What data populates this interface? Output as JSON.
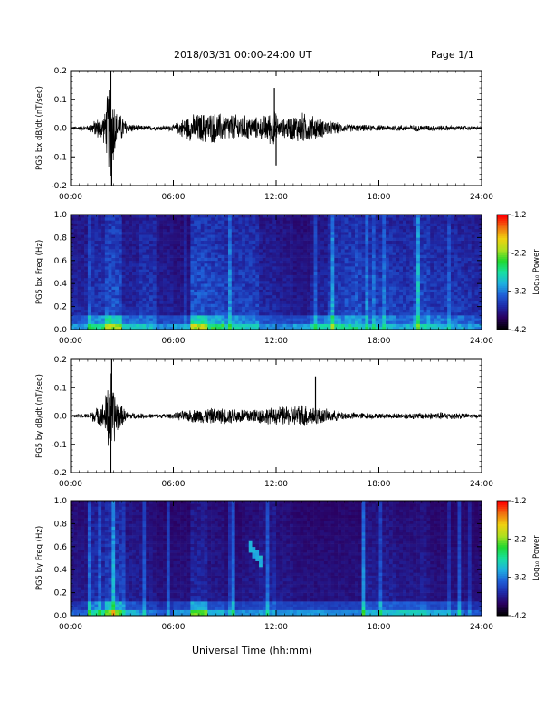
{
  "header": {
    "title": "2018/03/31  00:00-24:00 UT",
    "page": "Page 1/1"
  },
  "x_axis_title": "Universal Time (hh:mm)",
  "colors": {
    "trace": "#000000",
    "colormap": [
      "#000000",
      "#2a0060",
      "#1e2aa8",
      "#1f5fd8",
      "#1fb0e0",
      "#18e0a0",
      "#20d830",
      "#b0e020",
      "#f0d010",
      "#f07010",
      "#ff0000"
    ]
  },
  "chart_data": [
    {
      "type": "line",
      "title": "",
      "ylabel": "PG5 bx dB/dt (nT/sec)",
      "xlabel": "",
      "xlim": [
        "00:00",
        "24:00"
      ],
      "ylim": [
        -0.2,
        0.2
      ],
      "x_ticks": [
        "00:00",
        "06:00",
        "12:00",
        "18:00",
        "24:00"
      ],
      "y_ticks": [
        "-0.2",
        "-0.1",
        "0.0",
        "0.1",
        "0.2"
      ],
      "grid": false,
      "envelope": {
        "x_hours": [
          0,
          1,
          1.5,
          2,
          2.3,
          2.5,
          2.7,
          3,
          3.3,
          4,
          5,
          6,
          6.5,
          7,
          8,
          9,
          10,
          11,
          11.9,
          12.2,
          13,
          13.5,
          14,
          15,
          16,
          18,
          20,
          22,
          24
        ],
        "amplitude": [
          0.005,
          0.01,
          0.035,
          0.06,
          0.2,
          0.14,
          0.06,
          0.05,
          0.02,
          0.01,
          0.008,
          0.012,
          0.035,
          0.05,
          0.06,
          0.055,
          0.05,
          0.04,
          0.07,
          0.03,
          0.05,
          0.06,
          0.05,
          0.03,
          0.015,
          0.01,
          0.012,
          0.01,
          0.006
        ]
      },
      "spikes": [
        {
          "x_hour": 2.35,
          "y": 0.2
        },
        {
          "x_hour": 2.4,
          "y": -0.2
        },
        {
          "x_hour": 11.9,
          "y": 0.14
        },
        {
          "x_hour": 12.0,
          "y": -0.13
        }
      ]
    },
    {
      "type": "heatmap",
      "title": "",
      "ylabel": "PG5 bx Freq (Hz)",
      "xlabel": "",
      "xlim": [
        "00:00",
        "24:00"
      ],
      "ylim": [
        0.0,
        1.0
      ],
      "x_ticks": [
        "00:00",
        "06:00",
        "12:00",
        "18:00",
        "24:00"
      ],
      "y_ticks": [
        "0.0",
        "0.2",
        "0.4",
        "0.6",
        "0.8",
        "1.0"
      ],
      "colorbar": {
        "label": "Log₁₀ Power",
        "range": [
          -4.2,
          -1.2
        ],
        "ticks": [
          "-1.2",
          "-2.2",
          "-3.2",
          "-4.2"
        ]
      },
      "activity_by_hour": [
        0.35,
        0.45,
        0.6,
        0.35,
        0.45,
        0.3,
        0.25,
        0.6,
        0.55,
        0.5,
        0.5,
        0.35,
        0.3,
        0.25,
        0.35,
        0.5,
        0.55,
        0.5,
        0.5,
        0.45,
        0.55,
        0.45,
        0.45,
        0.4
      ],
      "low_freq_band_by_hour": [
        0.3,
        0.55,
        0.75,
        0.45,
        0.35,
        0.3,
        0.4,
        0.8,
        0.55,
        0.4,
        0.35,
        0.3,
        0.3,
        0.4,
        0.5,
        0.45,
        0.4,
        0.35,
        0.3,
        0.3,
        0.35,
        0.35,
        0.3,
        0.25
      ]
    },
    {
      "type": "line",
      "title": "",
      "ylabel": "PG5 by dB/dt (nT/sec)",
      "xlabel": "",
      "xlim": [
        "00:00",
        "24:00"
      ],
      "ylim": [
        -0.2,
        0.2
      ],
      "x_ticks": [
        "00:00",
        "06:00",
        "12:00",
        "18:00",
        "24:00"
      ],
      "y_ticks": [
        "-0.2",
        "-0.1",
        "0.0",
        "0.1",
        "0.2"
      ],
      "grid": false,
      "envelope": {
        "x_hours": [
          0,
          1,
          1.5,
          2,
          2.3,
          2.5,
          2.7,
          3,
          3.3,
          4,
          5,
          6,
          6.5,
          7,
          8,
          9,
          10,
          11,
          12,
          13,
          13.5,
          14,
          15,
          16,
          18,
          20,
          22,
          24
        ],
        "amplitude": [
          0.005,
          0.01,
          0.03,
          0.06,
          0.2,
          0.12,
          0.07,
          0.04,
          0.015,
          0.01,
          0.008,
          0.01,
          0.02,
          0.025,
          0.03,
          0.03,
          0.03,
          0.03,
          0.035,
          0.04,
          0.05,
          0.04,
          0.025,
          0.015,
          0.01,
          0.012,
          0.015,
          0.006
        ]
      },
      "spikes": [
        {
          "x_hour": 2.4,
          "y": 0.2
        },
        {
          "x_hour": 2.35,
          "y": -0.2
        },
        {
          "x_hour": 14.3,
          "y": 0.14
        }
      ]
    },
    {
      "type": "heatmap",
      "title": "",
      "ylabel": "PG5 by Freq (Hz)",
      "xlabel": "",
      "xlim": [
        "00:00",
        "24:00"
      ],
      "ylim": [
        0.0,
        1.0
      ],
      "x_ticks": [
        "00:00",
        "06:00",
        "12:00",
        "18:00",
        "24:00"
      ],
      "y_ticks": [
        "0.0",
        "0.2",
        "0.4",
        "0.6",
        "0.8",
        "1.0"
      ],
      "colorbar": {
        "label": "Log₁₀ Power",
        "range": [
          -4.2,
          -1.2
        ],
        "ticks": [
          "-1.2",
          "-2.2",
          "-3.2",
          "-4.2"
        ]
      },
      "activity_by_hour": [
        0.25,
        0.4,
        0.5,
        0.3,
        0.25,
        0.2,
        0.2,
        0.35,
        0.25,
        0.2,
        0.25,
        0.3,
        0.25,
        0.2,
        0.2,
        0.2,
        0.2,
        0.3,
        0.3,
        0.25,
        0.25,
        0.2,
        0.2,
        0.2
      ],
      "low_freq_band_by_hour": [
        0.25,
        0.5,
        0.7,
        0.4,
        0.3,
        0.25,
        0.4,
        0.8,
        0.45,
        0.35,
        0.35,
        0.35,
        0.35,
        0.4,
        0.4,
        0.35,
        0.35,
        0.4,
        0.45,
        0.5,
        0.5,
        0.45,
        0.35,
        0.25
      ],
      "feature": {
        "x_hours": [
          10.3,
          11.2
        ],
        "freq_hz": [
          0.45,
          0.65
        ]
      }
    }
  ]
}
